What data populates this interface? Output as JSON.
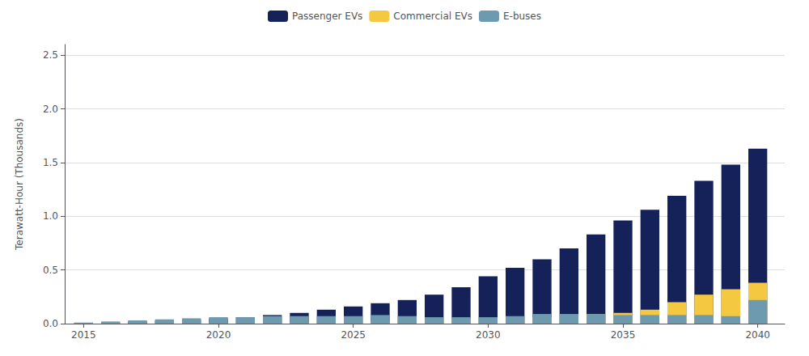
{
  "chart_data": {
    "type": "bar",
    "stacked": true,
    "ylabel": "Terawatt-Hour (Thousands)",
    "x": [
      2015,
      2016,
      2017,
      2018,
      2019,
      2020,
      2021,
      2022,
      2023,
      2024,
      2025,
      2026,
      2027,
      2028,
      2029,
      2030,
      2031,
      2032,
      2033,
      2034,
      2035,
      2036,
      2037,
      2038,
      2039,
      2040
    ],
    "xlim": [
      2014.3,
      2041.0
    ],
    "xticks": [
      2015,
      2020,
      2025,
      2030,
      2035,
      2040
    ],
    "ylim": [
      0,
      2.6
    ],
    "yticks": [
      {
        "value": 0.0,
        "label": "0.0"
      },
      0.5,
      {
        "value": 1.0,
        "label": "1.0"
      },
      1.5,
      {
        "value": 2.0,
        "label": "2.0"
      },
      2.5
    ],
    "grid": true,
    "legend": "top",
    "series": [
      {
        "name": "Passenger EVs",
        "color": "#152259",
        "values": [
          0.005,
          0.01,
          0.02,
          0.03,
          0.04,
          0.05,
          0.06,
          0.08,
          0.1,
          0.13,
          0.16,
          0.19,
          0.22,
          0.27,
          0.34,
          0.44,
          0.52,
          0.6,
          0.7,
          0.83,
          0.96,
          1.06,
          1.19,
          1.33,
          1.48,
          1.63
        ]
      },
      {
        "name": "Commercial EVs",
        "color": "#f5c842",
        "values": [
          0.001,
          0.001,
          0.001,
          0.001,
          0.001,
          0.005,
          0.005,
          0.005,
          0.01,
          0.01,
          0.02,
          0.02,
          0.03,
          0.04,
          0.05,
          0.05,
          0.05,
          0.06,
          0.07,
          0.09,
          0.1,
          0.13,
          0.2,
          0.27,
          0.32,
          0.38
        ]
      },
      {
        "name": "E-buses",
        "color": "#6e9ab0",
        "values": [
          0.01,
          0.02,
          0.03,
          0.04,
          0.05,
          0.06,
          0.06,
          0.07,
          0.07,
          0.07,
          0.07,
          0.08,
          0.07,
          0.06,
          0.06,
          0.06,
          0.07,
          0.09,
          0.09,
          0.09,
          0.08,
          0.08,
          0.08,
          0.08,
          0.07,
          0.22
        ]
      }
    ]
  }
}
